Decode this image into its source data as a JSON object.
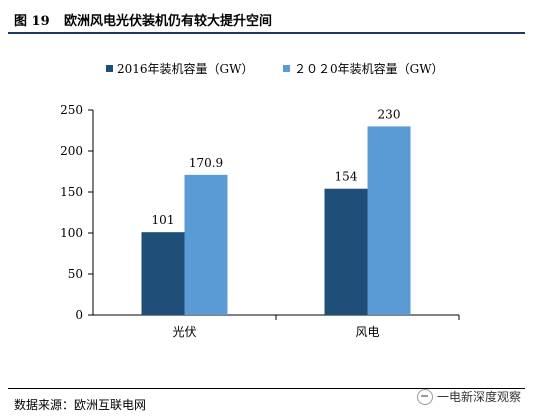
{
  "figure": {
    "number": "图 19",
    "title": "欧洲风电光伏装机仍有较大提升空间"
  },
  "source": "数据来源：欧洲互联电网",
  "watermark": "一电新深度观察",
  "colors": {
    "series_2016": "#1f4e79",
    "series_2020": "#5b9bd5",
    "title_rule": "#1f3864"
  },
  "chart_data": {
    "type": "bar",
    "categories": [
      "光伏",
      "风电"
    ],
    "series": [
      {
        "name": "2016年装机容量（GW）",
        "values": [
          101,
          154
        ],
        "labels": [
          "101",
          "154"
        ]
      },
      {
        "name": "２０２0年装机容量（GW）",
        "values": [
          170.9,
          230
        ],
        "labels": [
          "170.9",
          "230"
        ]
      }
    ],
    "yticks": [
      "0",
      "50",
      "100",
      "150",
      "200",
      "250"
    ],
    "ylim": [
      0,
      250
    ],
    "legend_position": "top",
    "grid": false
  }
}
